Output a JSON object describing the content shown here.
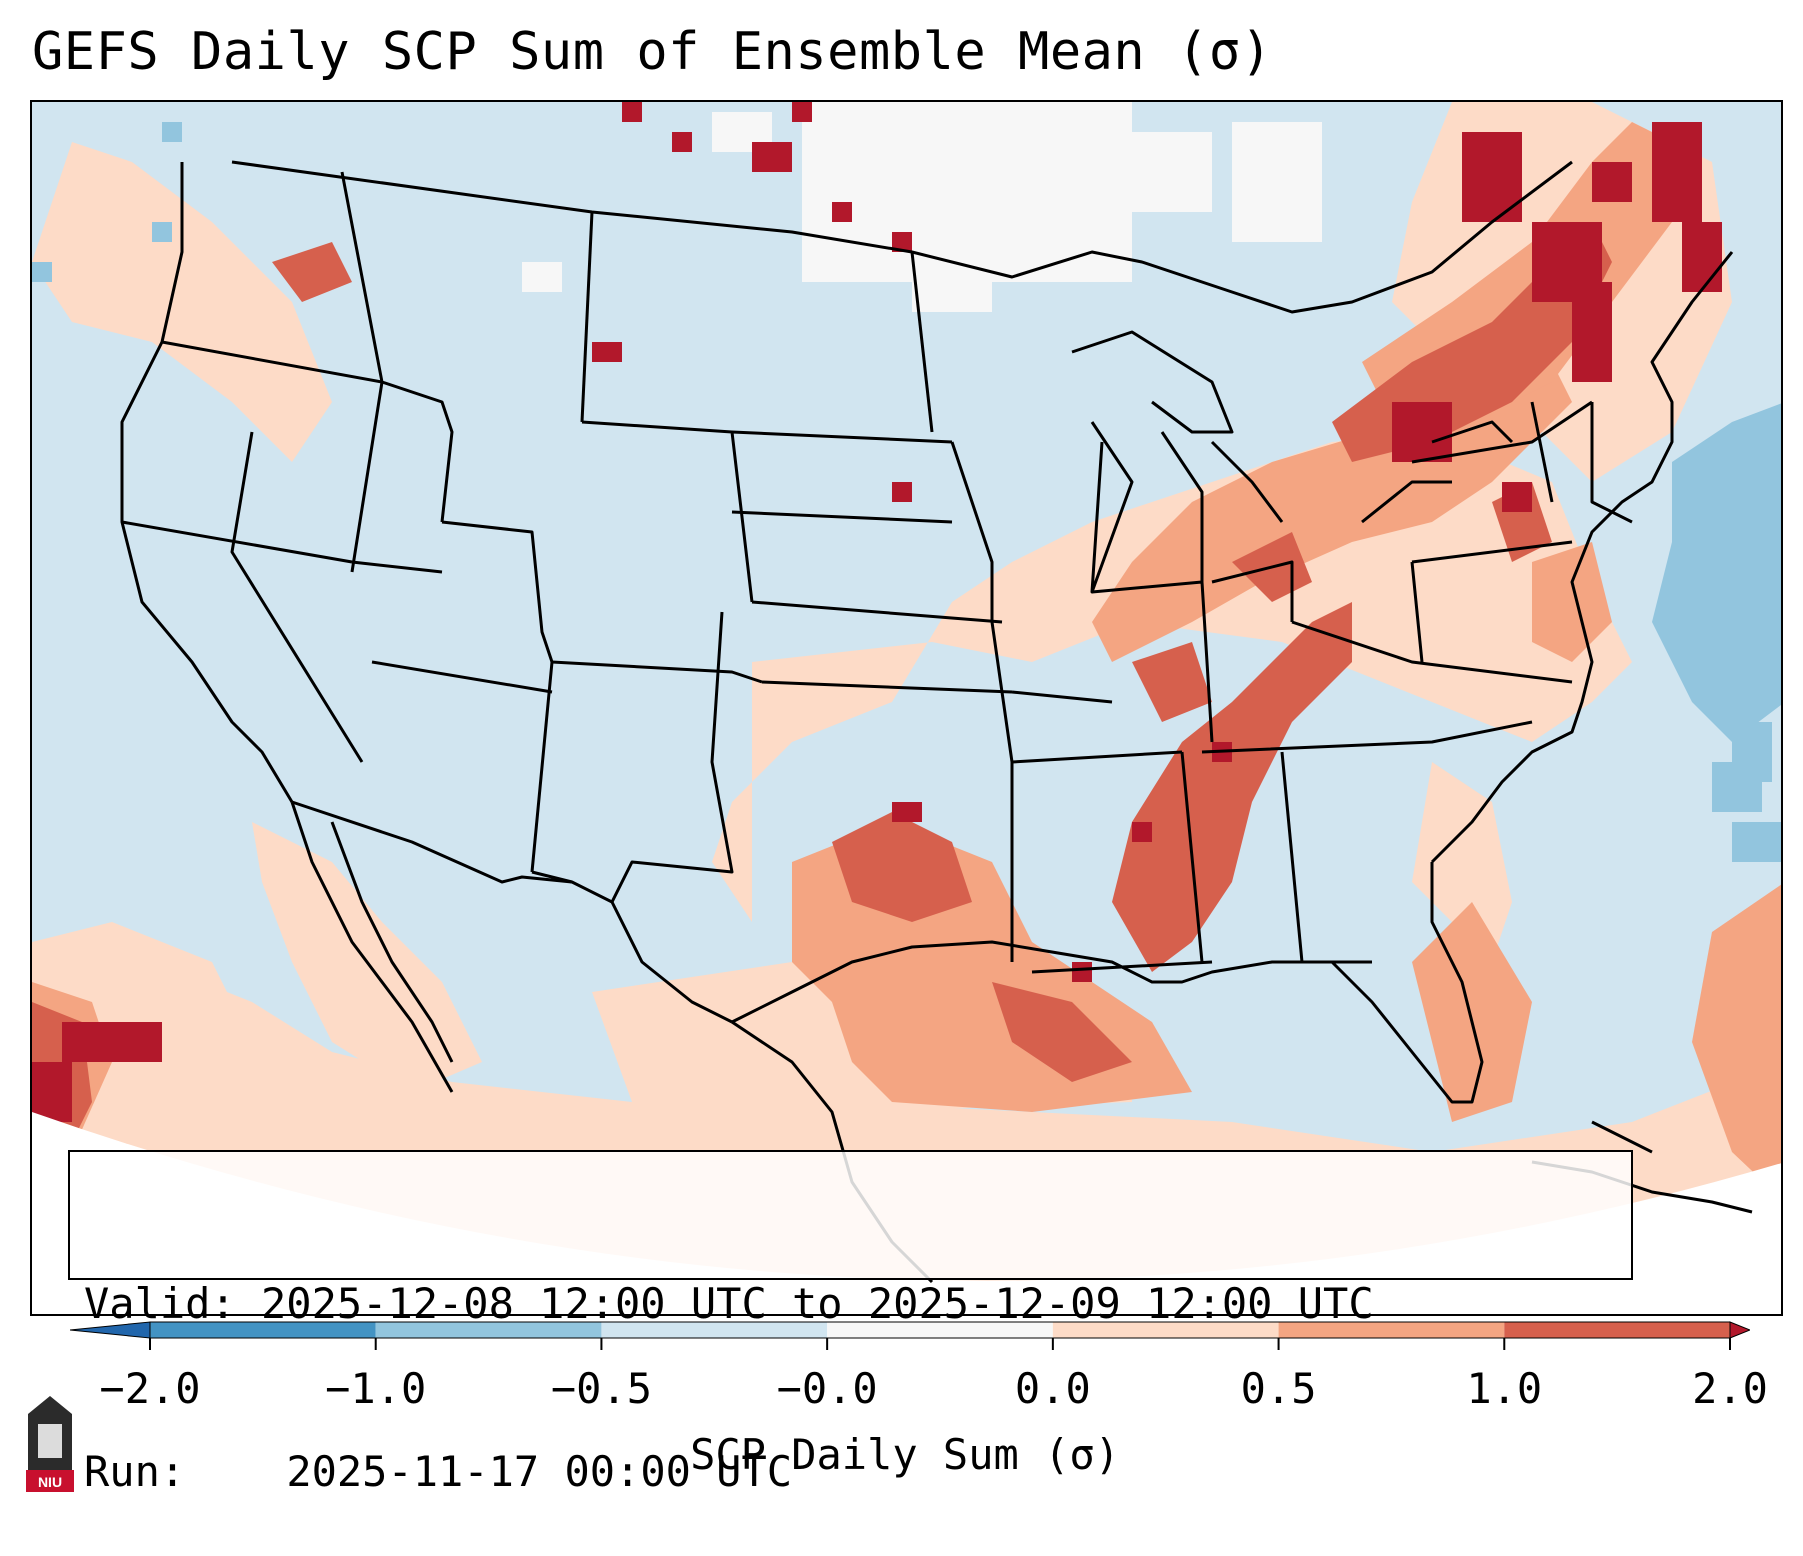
{
  "title": "GEFS Daily SCP Sum of Ensemble Mean (σ)",
  "info": {
    "valid_label": "Valid:",
    "valid_value": "2025-12-08 12:00 UTC to 2025-12-09 12:00 UTC",
    "run_label": "Run:",
    "run_value": "2025-11-17 00:00 UTC"
  },
  "colorbar": {
    "label": "SCP Daily Sum (σ)",
    "ticks": [
      "−2.0",
      "−1.0",
      "−0.5",
      "−0.0",
      "0.0",
      "0.5",
      "1.0",
      "2.0"
    ],
    "bin_colors": [
      "#4393c3",
      "#92c5de",
      "#d1e5f0",
      "#f7f7f7",
      "#fddbc7",
      "#f4a582",
      "#d6604d"
    ],
    "under_color": "#2166ac",
    "over_color": "#b2182b"
  },
  "map": {
    "background_color": "#d1e5f0",
    "region_levels": [
      {
        "name": "gulf-coast-elevated",
        "level": "0.5 to 1.0"
      },
      {
        "name": "southern-plains-elevated",
        "level": "0.5 to 1.0"
      },
      {
        "name": "lower-mississippi-valley-high",
        "level": "1.0 to 2.0"
      },
      {
        "name": "ohio-valley-elevated",
        "level": "0.5 to 1.0"
      },
      {
        "name": "northeast-high",
        "level": "1.0 to 2.0"
      },
      {
        "name": "atlantic-low",
        "level": "-1.0 to -0.5"
      }
    ]
  },
  "logo": {
    "text": "NIU"
  }
}
